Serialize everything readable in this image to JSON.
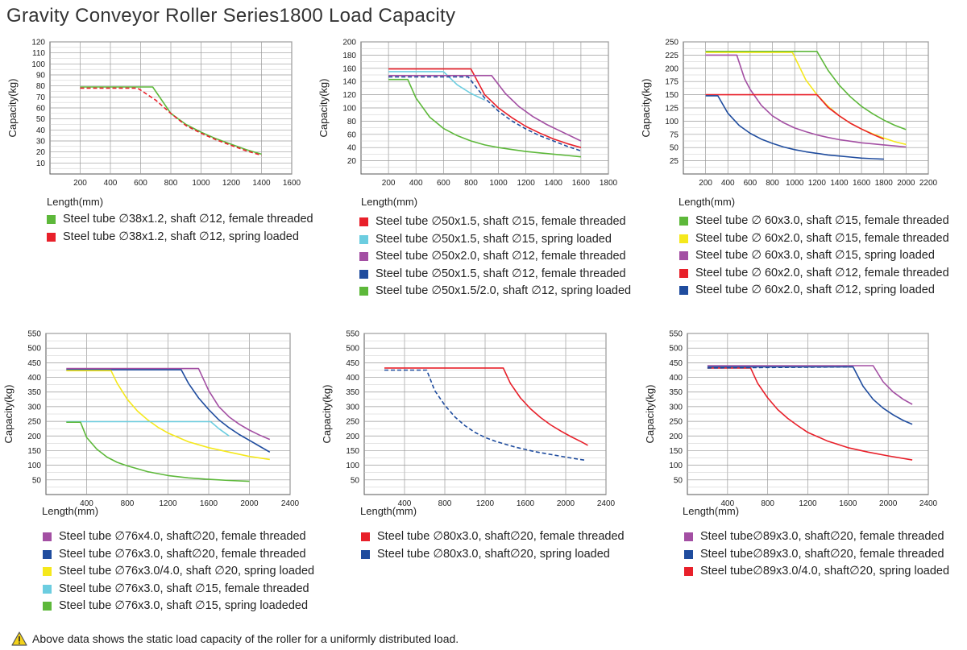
{
  "title": "Gravity Conveyor Roller Series1800 Load Capacity",
  "note": "Above data shows the static load capacity of the roller for a uniformly distributed load.",
  "colors": {
    "green": "#5db83a",
    "red": "#e8202a",
    "cyan": "#6ccde0",
    "purple": "#a34fa3",
    "blue": "#1f4c9e",
    "yellow": "#f5e81c",
    "grid": "#9a9a9a"
  },
  "chart_data": [
    {
      "type": "line",
      "xlabel": "Length(mm)",
      "ylabel": "Capacity(kg)",
      "xlim": [
        0,
        1600
      ],
      "ylim": [
        0,
        120
      ],
      "xticks": [
        200,
        400,
        600,
        800,
        1000,
        1200,
        1400,
        1600
      ],
      "yticks": [
        10,
        20,
        30,
        40,
        50,
        60,
        70,
        80,
        90,
        100,
        110,
        120
      ],
      "grid": true,
      "series": [
        {
          "name": "Steel tube ∅38x1.2, shaft ∅12, female threaded",
          "color": "#5db83a",
          "dash": false,
          "x": [
            200,
            680,
            800,
            900,
            1000,
            1100,
            1200,
            1300,
            1400
          ],
          "y": [
            79,
            79,
            55,
            45,
            38,
            32,
            27,
            22,
            18
          ]
        },
        {
          "name": "Steel tube ∅38x1.2, shaft ∅12, spring loaded",
          "color": "#e8202a",
          "dash": true,
          "x": [
            200,
            580,
            700,
            800,
            900,
            1000,
            1100,
            1200,
            1300,
            1400
          ],
          "y": [
            78,
            78,
            67,
            55,
            44,
            37,
            31,
            26,
            21,
            17
          ]
        }
      ]
    },
    {
      "type": "line",
      "xlabel": "Length(mm)",
      "ylabel": "Capacity(kg)",
      "xlim": [
        0,
        1800
      ],
      "ylim": [
        0,
        200
      ],
      "xticks": [
        200,
        400,
        600,
        800,
        1000,
        1200,
        1400,
        1600,
        1800
      ],
      "yticks": [
        20,
        40,
        60,
        80,
        100,
        120,
        140,
        160,
        180,
        200
      ],
      "grid": true,
      "series": [
        {
          "name": "Steel tube ∅50x1.5, shaft ∅15, female threaded",
          "color": "#e8202a",
          "dash": false,
          "x": [
            200,
            800,
            900,
            1000,
            1100,
            1200,
            1300,
            1400,
            1500,
            1600
          ],
          "y": [
            159,
            159,
            120,
            100,
            85,
            72,
            62,
            53,
            46,
            40
          ]
        },
        {
          "name": "Steel tube ∅50x1.5, shaft ∅15, spring loaded",
          "color": "#6ccde0",
          "dash": false,
          "x": [
            200,
            600,
            700,
            800,
            900
          ],
          "y": [
            155,
            155,
            135,
            122,
            112
          ]
        },
        {
          "name": "Steel tube ∅50x2.0, shaft ∅12, female threaded",
          "color": "#a34fa3",
          "dash": false,
          "x": [
            200,
            950,
            1050,
            1150,
            1250,
            1350,
            1450,
            1600
          ],
          "y": [
            149,
            149,
            122,
            102,
            87,
            75,
            65,
            50
          ]
        },
        {
          "name": "Steel tube ∅50x1.5, shaft ∅12, female threaded",
          "color": "#1f4c9e",
          "dash": true,
          "x": [
            200,
            780,
            900,
            1000,
            1100,
            1200,
            1300,
            1400,
            1500,
            1600
          ],
          "y": [
            147,
            147,
            115,
            95,
            80,
            68,
            58,
            50,
            42,
            35
          ]
        },
        {
          "name": "Steel tube ∅50x1.5/2.0, shaft ∅12, spring loaded",
          "color": "#5db83a",
          "dash": false,
          "x": [
            200,
            340,
            400,
            500,
            600,
            700,
            800,
            900,
            1000,
            1100,
            1200,
            1300,
            1400,
            1500,
            1600
          ],
          "y": [
            143,
            143,
            115,
            86,
            69,
            58,
            50,
            44,
            40,
            37,
            34,
            32,
            30,
            28,
            26
          ]
        }
      ]
    },
    {
      "type": "line",
      "xlabel": "Length(mm)",
      "ylabel": "Capacity(kg)",
      "xlim": [
        0,
        2200
      ],
      "ylim": [
        0,
        250
      ],
      "xticks": [
        200,
        400,
        600,
        800,
        1000,
        1200,
        1400,
        1600,
        1800,
        2000,
        2200
      ],
      "yticks": [
        25,
        50,
        75,
        100,
        125,
        150,
        175,
        200,
        225,
        250
      ],
      "grid": true,
      "series": [
        {
          "name": "Steel tube ∅ 60x3.0, shaft ∅15, female threaded",
          "color": "#5db83a",
          "dash": false,
          "x": [
            200,
            1200,
            1300,
            1400,
            1500,
            1600,
            1700,
            1800,
            1900,
            2000
          ],
          "y": [
            232,
            232,
            196,
            168,
            146,
            128,
            114,
            102,
            92,
            84
          ]
        },
        {
          "name": "Steel tube ∅ 60x2.0, shaft ∅15, female threaded",
          "color": "#f5e81c",
          "dash": false,
          "x": [
            200,
            980,
            1100,
            1200,
            1300,
            1400,
            1500,
            1600,
            1700,
            1800,
            1900,
            2000
          ],
          "y": [
            230,
            230,
            178,
            150,
            128,
            110,
            96,
            85,
            76,
            68,
            61,
            56
          ]
        },
        {
          "name": "Steel tube ∅ 60x3.0, shaft ∅15, spring loaded",
          "color": "#a34fa3",
          "dash": false,
          "x": [
            200,
            480,
            550,
            600,
            700,
            800,
            900,
            1000,
            1100,
            1200,
            1300,
            1400,
            1500,
            1600,
            1700,
            1800,
            1900,
            2000
          ],
          "y": [
            225,
            225,
            180,
            160,
            130,
            110,
            97,
            87,
            80,
            74,
            69,
            65,
            62,
            59,
            57,
            55,
            53,
            51
          ]
        },
        {
          "name": "Steel tube ∅ 60x2.0, shaft ∅12, female threaded",
          "color": "#e8202a",
          "dash": false,
          "x": [
            200,
            1200,
            1300,
            1400,
            1500,
            1600,
            1700,
            1800
          ],
          "y": [
            150,
            150,
            126,
            110,
            96,
            85,
            75,
            66
          ]
        },
        {
          "name": "Steel tube ∅ 60x2.0, shaft ∅12, spring loaded",
          "color": "#1f4c9e",
          "dash": false,
          "x": [
            200,
            310,
            400,
            500,
            600,
            700,
            800,
            900,
            1000,
            1100,
            1200,
            1300,
            1400,
            1500,
            1600,
            1700,
            1800
          ],
          "y": [
            148,
            148,
            115,
            92,
            77,
            66,
            58,
            51,
            46,
            42,
            39,
            36,
            34,
            32,
            30,
            29,
            28
          ]
        }
      ]
    },
    {
      "type": "line",
      "xlabel": "Length(mm)",
      "ylabel": "Capacity(kg)",
      "xlim": [
        0,
        2400
      ],
      "ylim": [
        0,
        550
      ],
      "xticks": [
        400,
        800,
        1200,
        1600,
        2000,
        2400
      ],
      "yticks": [
        50,
        100,
        150,
        200,
        250,
        300,
        350,
        400,
        450,
        500,
        550
      ],
      "grid": true,
      "series": [
        {
          "name": "Steel tube ∅76x4.0, shaft∅20, female threaded",
          "color": "#a34fa3",
          "dash": false,
          "x": [
            200,
            1500,
            1600,
            1700,
            1800,
            1900,
            2000,
            2100,
            2200
          ],
          "y": [
            430,
            430,
            355,
            300,
            265,
            240,
            220,
            203,
            188
          ]
        },
        {
          "name": "Steel tube ∅76x3.0, shaft∅20, female threaded",
          "color": "#1f4c9e",
          "dash": false,
          "x": [
            200,
            1330,
            1400,
            1500,
            1600,
            1700,
            1800,
            1900,
            2000,
            2100,
            2200
          ],
          "y": [
            426,
            426,
            380,
            330,
            290,
            255,
            228,
            205,
            185,
            165,
            145
          ]
        },
        {
          "name": "Steel tube ∅76x3.0/4.0, shaft ∅20, spring loaded",
          "color": "#f5e81c",
          "dash": false,
          "x": [
            200,
            640,
            700,
            800,
            900,
            1000,
            1100,
            1200,
            1400,
            1600,
            1800,
            2000,
            2200
          ],
          "y": [
            423,
            423,
            380,
            325,
            285,
            255,
            230,
            210,
            180,
            160,
            145,
            130,
            120
          ]
        },
        {
          "name": "Steel tube ∅76x3.0, shaft ∅15, female threaded",
          "color": "#6ccde0",
          "dash": false,
          "x": [
            200,
            1620,
            1700,
            1800
          ],
          "y": [
            249,
            249,
            225,
            200
          ]
        },
        {
          "name": "Steel tube ∅76x3.0, shaft ∅15, spring loadeded",
          "color": "#5db83a",
          "dash": false,
          "x": [
            200,
            340,
            400,
            500,
            600,
            700,
            800,
            1000,
            1200,
            1400,
            1600,
            1800,
            2000
          ],
          "y": [
            247,
            247,
            195,
            155,
            128,
            110,
            98,
            78,
            65,
            57,
            52,
            48,
            45
          ]
        }
      ]
    },
    {
      "type": "line",
      "xlabel": "Length(mm)",
      "ylabel": "Capacity(kg)",
      "xlim": [
        0,
        2400
      ],
      "ylim": [
        0,
        550
      ],
      "xticks": [
        400,
        800,
        1200,
        1600,
        2000,
        2400
      ],
      "yticks": [
        50,
        100,
        150,
        200,
        250,
        300,
        350,
        400,
        450,
        500,
        550
      ],
      "grid": true,
      "series": [
        {
          "name": "Steel tube ∅80x3.0, shaft∅20, female threaded",
          "color": "#e8202a",
          "dash": false,
          "x": [
            200,
            1380,
            1450,
            1550,
            1650,
            1750,
            1850,
            1950,
            2050,
            2150,
            2220
          ],
          "y": [
            432,
            432,
            380,
            330,
            293,
            263,
            238,
            217,
            198,
            181,
            168
          ]
        },
        {
          "name": "Steel tube ∅80x3.0, shaft∅20, spring loaded",
          "color": "#1f4c9e",
          "dash": true,
          "x": [
            200,
            620,
            700,
            800,
            900,
            1000,
            1100,
            1200,
            1300,
            1400,
            1500,
            1600,
            1700,
            1800,
            1900,
            2000,
            2100,
            2200
          ],
          "y": [
            425,
            425,
            355,
            305,
            265,
            235,
            212,
            195,
            182,
            172,
            162,
            154,
            146,
            140,
            134,
            128,
            122,
            117
          ]
        }
      ]
    },
    {
      "type": "line",
      "xlabel": "Length(mm)",
      "ylabel": "Capacity(kg)",
      "xlim": [
        0,
        2400
      ],
      "ylim": [
        0,
        550
      ],
      "xticks": [
        400,
        800,
        1200,
        1600,
        2000,
        2400
      ],
      "yticks": [
        50,
        100,
        150,
        200,
        250,
        300,
        350,
        400,
        450,
        500,
        550
      ],
      "grid": true,
      "series": [
        {
          "name": "Steel tube∅89x3.0, shaft∅20, female threaded",
          "color": "#a34fa3",
          "dash": false,
          "x": [
            200,
            1850,
            1950,
            2050,
            2150,
            2240
          ],
          "y": [
            440,
            440,
            385,
            350,
            325,
            308
          ]
        },
        {
          "name": "Steel tube∅89x3.0, shaft∅20, female threaded",
          "color": "#1f4c9e",
          "dash": false,
          "x": [
            200,
            1650,
            1750,
            1850,
            1950,
            2050,
            2150,
            2240
          ],
          "y": [
            436,
            436,
            370,
            325,
            295,
            272,
            253,
            240
          ]
        },
        {
          "name": "Steel tube∅89x3.0/4.0, shaft∅20, spring loaded",
          "color": "#e8202a",
          "dash": false,
          "x": [
            200,
            630,
            700,
            800,
            900,
            1000,
            1100,
            1200,
            1400,
            1600,
            1800,
            2000,
            2240
          ],
          "y": [
            432,
            432,
            380,
            330,
            290,
            260,
            235,
            212,
            182,
            160,
            145,
            132,
            118
          ]
        },
        {
          "name": "",
          "color": "#1f4c9e",
          "dash": true,
          "x": [
            200,
            1650
          ],
          "y": [
            432,
            436
          ]
        }
      ]
    }
  ]
}
